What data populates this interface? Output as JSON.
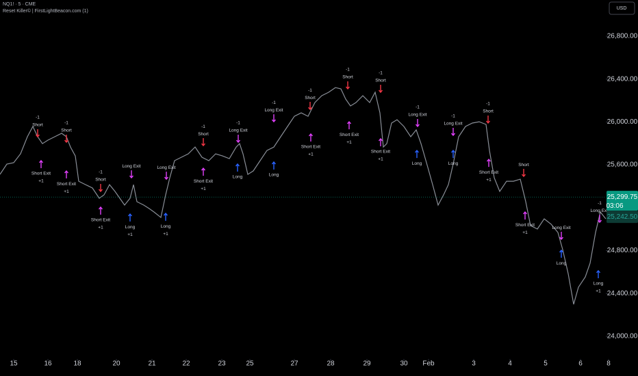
{
  "chart_data": {
    "type": "line",
    "title": "NQ1! · 5 · CME",
    "subtitle": "Reset Killer© | FirstLightBeacon.com (1)",
    "currency": "USD",
    "color": "#8a8f98",
    "x": [
      0,
      10,
      20,
      30,
      40,
      48,
      55,
      62,
      70,
      80,
      90,
      97,
      103,
      110,
      115,
      125,
      135,
      145,
      152,
      160,
      168,
      175,
      182,
      190,
      195,
      200,
      210,
      218,
      225,
      235,
      242,
      248,
      255,
      265,
      275,
      285,
      295,
      305,
      315,
      325,
      335,
      345,
      350,
      355,
      362,
      370,
      380,
      390,
      400,
      410,
      420,
      430,
      440,
      450,
      460,
      470,
      480,
      490,
      498,
      505,
      512,
      520,
      530,
      540,
      548,
      555,
      560,
      565,
      572,
      580,
      590,
      600,
      608,
      615,
      625,
      632,
      640,
      648,
      655,
      662,
      670,
      680,
      690,
      700,
      710,
      715,
      722,
      730,
      740,
      750,
      760,
      768,
      775,
      785,
      795,
      805,
      815,
      822,
      830,
      838,
      845,
      855,
      862,
      870,
      877,
      885
    ],
    "values": [
      25511,
      25607,
      25620,
      25703,
      25862,
      25958,
      25862,
      25798,
      25830,
      25862,
      25894,
      25862,
      25766,
      25683,
      25447,
      25415,
      25384,
      25288,
      25320,
      25415,
      25352,
      25288,
      25224,
      25288,
      25415,
      25256,
      25224,
      25192,
      25160,
      25109,
      25320,
      25479,
      25639,
      25671,
      25703,
      25766,
      25671,
      25639,
      25703,
      25683,
      25658,
      25766,
      25798,
      25703,
      25511,
      25543,
      25639,
      25734,
      25766,
      25862,
      25958,
      26053,
      26085,
      26053,
      26181,
      26245,
      26277,
      26321,
      26309,
      26213,
      26149,
      26181,
      26245,
      26181,
      26277,
      26085,
      25766,
      25798,
      25990,
      26021,
      25958,
      25862,
      25926,
      25798,
      25575,
      25415,
      25224,
      25320,
      25415,
      25607,
      25862,
      25958,
      25990,
      26002,
      25977,
      25734,
      25479,
      25352,
      25447,
      25447,
      25466,
      25256,
      25033,
      25001,
      25096,
      25046,
      24969,
      24809,
      24585,
      24299,
      24458,
      24554,
      24682,
      24969,
      25160,
      25096
    ],
    "xlim": [
      0,
      885
    ],
    "xticks": [
      {
        "value": 20,
        "label": "15"
      },
      {
        "value": 70,
        "label": "16"
      },
      {
        "value": 113,
        "label": "18"
      },
      {
        "value": 170,
        "label": "20"
      },
      {
        "value": 222,
        "label": "21"
      },
      {
        "value": 272,
        "label": "22"
      },
      {
        "value": 324,
        "label": "23"
      },
      {
        "value": 365,
        "label": "25"
      },
      {
        "value": 430,
        "label": "27"
      },
      {
        "value": 483,
        "label": "28"
      },
      {
        "value": 536,
        "label": "29"
      },
      {
        "value": 590,
        "label": "30"
      },
      {
        "value": 626,
        "label": "Feb"
      },
      {
        "value": 692,
        "label": "3"
      },
      {
        "value": 745,
        "label": "4"
      },
      {
        "value": 797,
        "label": "5"
      },
      {
        "value": 848,
        "label": "6"
      },
      {
        "value": 889,
        "label": "8"
      }
    ],
    "ylim": [
      23789,
      27138
    ],
    "yticks": [
      {
        "value": 24000,
        "label": "24,000.00"
      },
      {
        "value": 24400,
        "label": "24,400.00"
      },
      {
        "value": 24800,
        "label": "24,800.00"
      },
      {
        "value": 25200,
        "label": "25,200.00"
      },
      {
        "value": 25600,
        "label": "25,600.00"
      },
      {
        "value": 26000,
        "label": "26,000.00"
      },
      {
        "value": 26400,
        "label": "26,400.00"
      },
      {
        "value": 26800,
        "label": "26,800.00"
      }
    ],
    "hidden_ytick": 25200,
    "last_price": {
      "value": 25299.75,
      "label": "25,299.75",
      "countdown": "03:06",
      "color": "#089981"
    },
    "ref_price": {
      "value": 25242.5,
      "label": "25,242.50",
      "color": "#0d3b34"
    },
    "signals": [
      {
        "x": 55,
        "price": 25862,
        "label": "Short",
        "qty": "-1",
        "color": "#f23645",
        "side": "above"
      },
      {
        "x": 60,
        "price": 25639,
        "label": "Short Exit",
        "qty": "+1",
        "color": "#e040fb",
        "side": "below"
      },
      {
        "x": 97,
        "price": 25811,
        "label": "Short",
        "qty": "-1",
        "color": "#f23645",
        "side": "above"
      },
      {
        "x": 97,
        "price": 25543,
        "label": "Short Exit",
        "qty": "+1",
        "color": "#e040fb",
        "side": "below"
      },
      {
        "x": 147,
        "price": 25352,
        "label": "Short",
        "qty": "-1",
        "color": "#f23645",
        "side": "above"
      },
      {
        "x": 147,
        "price": 25205,
        "label": "Short Exit",
        "qty": "+1",
        "color": "#e040fb",
        "side": "below"
      },
      {
        "x": 192,
        "price": 25479,
        "label": "Long Exit",
        "color": "#e040fb",
        "side": "above"
      },
      {
        "x": 190,
        "price": 25141,
        "label": "Long",
        "qty": "+1",
        "color": "#2962ff",
        "side": "below"
      },
      {
        "x": 243,
        "price": 25466,
        "label": "Long Exit",
        "color": "#e040fb",
        "side": "above"
      },
      {
        "x": 242,
        "price": 25147,
        "label": "Long",
        "qty": "+1",
        "color": "#2962ff",
        "side": "below"
      },
      {
        "x": 297,
        "price": 25779,
        "label": "Short",
        "qty": "-1",
        "color": "#f23645",
        "side": "above"
      },
      {
        "x": 297,
        "price": 25568,
        "label": "Short Exit",
        "qty": "+1",
        "color": "#e040fb",
        "side": "below"
      },
      {
        "x": 348,
        "price": 25811,
        "label": "Long Exit",
        "qty": "-1",
        "color": "#e040fb",
        "side": "above"
      },
      {
        "x": 347,
        "price": 25607,
        "label": "Long",
        "color": "#2962ff",
        "side": "below"
      },
      {
        "x": 400,
        "price": 26002,
        "label": "Long Exit",
        "qty": "-1",
        "color": "#e040fb",
        "side": "above"
      },
      {
        "x": 400,
        "price": 25626,
        "label": "Long",
        "color": "#2962ff",
        "side": "below"
      },
      {
        "x": 453,
        "price": 26117,
        "label": "Short",
        "qty": "-1",
        "color": "#f23645",
        "side": "above"
      },
      {
        "x": 454,
        "price": 25888,
        "label": "Short Exit",
        "qty": "+1",
        "color": "#e040fb",
        "side": "below"
      },
      {
        "x": 508,
        "price": 26309,
        "label": "Short",
        "qty": "-1",
        "color": "#f23645",
        "side": "above"
      },
      {
        "x": 510,
        "price": 26002,
        "label": "Short Exit",
        "qty": "+1",
        "color": "#e040fb",
        "side": "below"
      },
      {
        "x": 556,
        "price": 26277,
        "label": "Short",
        "qty": "-1",
        "color": "#f23645",
        "side": "above"
      },
      {
        "x": 556,
        "price": 25843,
        "label": "Short Exit",
        "qty": "+1",
        "color": "#e040fb",
        "side": "below"
      },
      {
        "x": 610,
        "price": 25958,
        "label": "Long Exit",
        "qty": "-1",
        "color": "#e040fb",
        "side": "above"
      },
      {
        "x": 609,
        "price": 25734,
        "label": "Long",
        "color": "#2962ff",
        "side": "below"
      },
      {
        "x": 662,
        "price": 25875,
        "label": "Long Exit",
        "qty": "-1",
        "color": "#e040fb",
        "side": "above"
      },
      {
        "x": 662,
        "price": 25734,
        "label": "Long",
        "color": "#2962ff",
        "side": "below"
      },
      {
        "x": 713,
        "price": 25990,
        "label": "Short",
        "qty": "-1",
        "color": "#f23645",
        "side": "above"
      },
      {
        "x": 714,
        "price": 25651,
        "label": "Short Exit",
        "qty": "+1",
        "color": "#e040fb",
        "side": "below"
      },
      {
        "x": 765,
        "price": 25492,
        "label": "Short",
        "color": "#f23645",
        "side": "above"
      },
      {
        "x": 767,
        "price": 25160,
        "label": "Short Exit",
        "qty": "+1",
        "color": "#e040fb",
        "side": "below"
      },
      {
        "x": 820,
        "price": 24905,
        "label": "Long Exit",
        "color": "#e040fb",
        "side": "above"
      },
      {
        "x": 820,
        "price": 24803,
        "label": "Long",
        "color": "#2962ff",
        "side": "below"
      },
      {
        "x": 876,
        "price": 25064,
        "label": "Long Exit",
        "qty": "-1",
        "color": "#e040fb",
        "side": "above"
      },
      {
        "x": 874,
        "price": 24612,
        "label": "Long",
        "qty": "+1",
        "color": "#2962ff",
        "side": "below"
      }
    ]
  }
}
